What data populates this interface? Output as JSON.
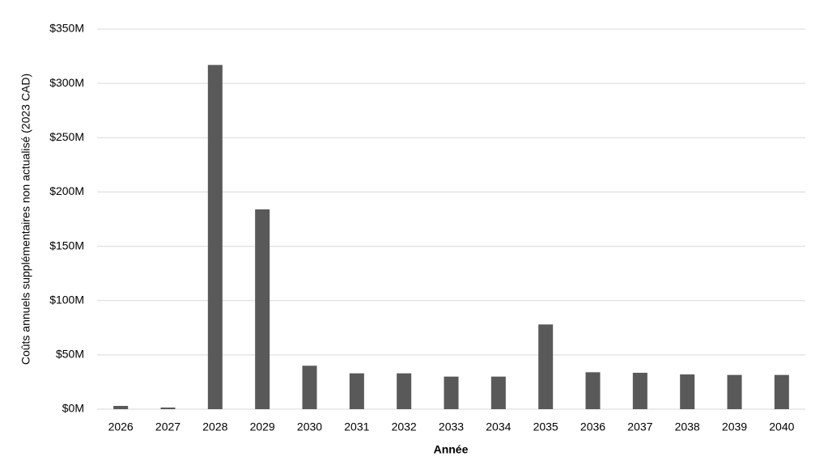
{
  "chart_data": {
    "type": "bar",
    "x_label": "Année",
    "y_label": "Coûts annuels supplémentaires non actualisé (2023 CAD)",
    "categories": [
      "2026",
      "2027",
      "2028",
      "2029",
      "2030",
      "2031",
      "2032",
      "2033",
      "2034",
      "2035",
      "2036",
      "2037",
      "2038",
      "2039",
      "2040"
    ],
    "values": [
      3,
      1.5,
      317,
      184,
      40,
      33,
      33,
      30,
      30,
      78,
      34,
      33.5,
      32,
      31.5,
      31.5
    ],
    "color": "#595959",
    "ylim": [
      0,
      350
    ],
    "yticks": [
      {
        "value": 0,
        "label": "$0M"
      },
      {
        "value": 50,
        "label": "$50M"
      },
      {
        "value": 100,
        "label": "$100M"
      },
      {
        "value": 150,
        "label": "$150M"
      },
      {
        "value": 200,
        "label": "$200M"
      },
      {
        "value": 250,
        "label": "$250M"
      },
      {
        "value": 300,
        "label": "$300M"
      },
      {
        "value": 350,
        "label": "$350M"
      }
    ],
    "grid": true
  }
}
